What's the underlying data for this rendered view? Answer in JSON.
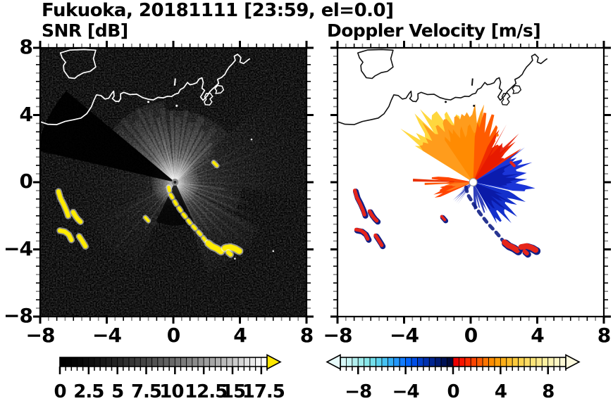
{
  "title": "Fukuoka, 20181111 [23:59, el=0.0]",
  "header": {
    "site": "Fukuoka",
    "date": "20181111",
    "time": "23:59",
    "elevation": "0.0"
  },
  "panels": [
    {
      "subtitle": "SNR [dB]"
    },
    {
      "subtitle": "Doppler Velocity [m/s]"
    }
  ],
  "axes": {
    "x_tick_labels": [
      "−8",
      "−4",
      "0",
      "4",
      "8"
    ],
    "x_tick_values": [
      -8,
      -4,
      0,
      4,
      8
    ],
    "y_tick_labels": [
      "8",
      "4",
      "0",
      "−4",
      "−8"
    ],
    "y_tick_values": [
      8,
      4,
      0,
      -4,
      -8
    ],
    "range": [
      -8,
      8
    ],
    "minor_step": 0.5
  },
  "colorbars": [
    {
      "id": "snr",
      "min": 0,
      "max": 18,
      "segment_step": 0.5,
      "minor_step": 0.5,
      "tick_labels": [
        "0",
        "2.5",
        "5",
        "7.5",
        "10",
        "12.5",
        "15",
        "17.5"
      ],
      "tick_values": [
        0,
        2.5,
        5,
        7.5,
        10,
        12.5,
        15,
        17.5
      ],
      "label_dx": [
        0,
        0,
        0,
        0,
        -5,
        3,
        1,
        3
      ],
      "over_arrow_color": "#ffe800",
      "segment_colors": [
        "#000000",
        "#020202",
        "#040404",
        "#070707",
        "#0b0b0b",
        "#0f0f0f",
        "#141414",
        "#191919",
        "#1e1e1e",
        "#232323",
        "#292929",
        "#303030",
        "#363636",
        "#3d3d3d",
        "#444444",
        "#4b4b4b",
        "#525252",
        "#5a5a5a",
        "#616161",
        "#696969",
        "#717171",
        "#7a7a7a",
        "#828282",
        "#8b8b8b",
        "#949494",
        "#9d9d9d",
        "#a6a6a6",
        "#afafaf",
        "#b9b9b9",
        "#c2c2c2",
        "#cccccc",
        "#d6d6d6",
        "#e0e0e0",
        "#eaeaea",
        "#f5f5f5",
        "#ffffff"
      ]
    },
    {
      "id": "doppler",
      "min": -9.5,
      "max": 9.5,
      "segment_step": 0.5,
      "minor_step": 0.5,
      "tick_labels": [
        "−8",
        "−4",
        "0",
        "4",
        "8"
      ],
      "tick_values": [
        -8,
        -4,
        0,
        4,
        8
      ],
      "label_dx": [
        0,
        0,
        0,
        0,
        0
      ],
      "under_arrow_color": "#e8fcfc",
      "over_arrow_color": "#fdfade",
      "segment_colors": [
        "#d7f8f8",
        "#c6f4f4",
        "#b2f0f0",
        "#9eecec",
        "#88e6e9",
        "#72deea",
        "#5cd2ee",
        "#46c2f2",
        "#32aef6",
        "#2296fa",
        "#127cfe",
        "#0264fa",
        "#004ee6",
        "#003eca",
        "#0030ae",
        "#002490",
        "#001a72",
        "#001256",
        "#000a3a",
        "#ec0000",
        "#f81400",
        "#fc2c00",
        "#fc4400",
        "#fc5c00",
        "#fc7400",
        "#fc8c00",
        "#fc9e08",
        "#fcae18",
        "#fcbc28",
        "#fcca3c",
        "#fcd450",
        "#fcdc64",
        "#fce478",
        "#fcea8c",
        "#fcf0a0",
        "#fcf4b4",
        "#fcf6c4",
        "#fcf8d4"
      ]
    }
  ],
  "chart_data": {
    "type": "heatmap",
    "panels": [
      {
        "id": "snr",
        "title": "SNR [dB]",
        "xlim": [
          -8,
          8
        ],
        "ylim": [
          -8,
          8
        ],
        "background": "#000000",
        "radar_center": [
          0.1,
          0.0
        ],
        "colorbar": "snr"
      },
      {
        "id": "doppler",
        "title": "Doppler Velocity [m/s]",
        "xlim": [
          -8,
          8
        ],
        "ylim": [
          -8,
          8
        ],
        "background": "#ffffff",
        "radar_center": [
          0.15,
          0.0
        ],
        "colorbar": "doppler"
      }
    ],
    "coastline": {
      "island": [
        [
          -6.78,
          7.7
        ],
        [
          -6.2,
          7.87
        ],
        [
          -5.34,
          7.9
        ],
        [
          -4.66,
          7.86
        ],
        [
          -4.8,
          7.36
        ],
        [
          -4.66,
          6.86
        ],
        [
          -5.0,
          6.6
        ],
        [
          -5.38,
          6.52
        ],
        [
          -5.76,
          6.32
        ],
        [
          -5.92,
          6.18
        ],
        [
          -6.27,
          6.22
        ],
        [
          -6.57,
          6.64
        ],
        [
          -6.6,
          6.95
        ],
        [
          -6.47,
          7.14
        ],
        [
          -6.68,
          7.4
        ]
      ],
      "main": [
        [
          -8.05,
          3.62
        ],
        [
          -7.55,
          3.45
        ],
        [
          -7.0,
          3.43
        ],
        [
          -6.5,
          3.62
        ],
        [
          -6.0,
          3.72
        ],
        [
          -5.55,
          3.82
        ],
        [
          -5.2,
          4.08
        ],
        [
          -4.92,
          4.5
        ],
        [
          -4.77,
          4.88
        ],
        [
          -4.62,
          5.2
        ],
        [
          -4.35,
          5.16
        ],
        [
          -4.1,
          4.95
        ],
        [
          -3.88,
          5.0
        ],
        [
          -3.7,
          5.28
        ],
        [
          -3.58,
          5.42
        ],
        [
          -3.56,
          5.12
        ],
        [
          -3.66,
          4.98
        ],
        [
          -3.48,
          4.82
        ],
        [
          -3.28,
          4.8
        ],
        [
          -3.16,
          4.98
        ],
        [
          -3.17,
          5.26
        ],
        [
          -2.98,
          5.35
        ],
        [
          -2.6,
          5.22
        ],
        [
          -2.2,
          5.24
        ],
        [
          -1.85,
          5.04
        ],
        [
          -1.5,
          4.94
        ],
        [
          -1.2,
          4.9
        ],
        [
          -0.92,
          5.05
        ],
        [
          -0.6,
          5.02
        ],
        [
          -0.35,
          5.12
        ],
        [
          -0.1,
          5.1
        ],
        [
          0.1,
          5.24
        ],
        [
          0.3,
          5.3
        ],
        [
          0.42,
          5.52
        ],
        [
          0.62,
          5.62
        ],
        [
          0.85,
          5.94
        ],
        [
          1.0,
          5.8
        ],
        [
          1.18,
          5.84
        ],
        [
          1.4,
          5.92
        ],
        [
          1.55,
          6.14
        ],
        [
          1.72,
          6.22
        ],
        [
          1.8,
          5.94
        ],
        [
          1.72,
          5.6
        ],
        [
          1.88,
          5.46
        ],
        [
          1.64,
          5.08
        ],
        [
          1.78,
          4.88
        ],
        [
          2.02,
          5.12
        ],
        [
          2.22,
          5.42
        ],
        [
          2.52,
          5.7
        ],
        [
          2.72,
          5.88
        ],
        [
          2.66,
          6.12
        ],
        [
          2.9,
          6.24
        ],
        [
          3.1,
          6.42
        ],
        [
          3.2,
          6.62
        ],
        [
          3.36,
          6.86
        ],
        [
          3.56,
          7.06
        ],
        [
          3.72,
          7.26
        ],
        [
          3.66,
          7.5
        ],
        [
          3.86,
          7.62
        ],
        [
          4.06,
          7.42
        ],
        [
          4.0,
          7.16
        ],
        [
          4.22,
          7.06
        ],
        [
          4.46,
          7.26
        ],
        [
          4.6,
          7.36
        ]
      ],
      "pierA": [
        [
          1.92,
          4.62
        ],
        [
          2.18,
          4.6
        ],
        [
          2.32,
          4.78
        ],
        [
          2.2,
          4.96
        ],
        [
          2.36,
          5.1
        ],
        [
          2.22,
          5.3
        ],
        [
          1.98,
          5.28
        ],
        [
          1.88,
          5.08
        ],
        [
          1.98,
          4.94
        ],
        [
          1.86,
          4.78
        ]
      ],
      "pierB": [
        [
          2.55,
          5.28
        ],
        [
          2.85,
          5.32
        ],
        [
          3.02,
          5.5
        ],
        [
          2.92,
          5.72
        ],
        [
          2.66,
          5.76
        ],
        [
          2.5,
          5.58
        ],
        [
          2.6,
          5.44
        ]
      ],
      "islet": [
        [
          0.08,
          5.75
        ],
        [
          0.12,
          6.18
        ]
      ],
      "dots": [
        [
          -1.5,
          4.78
        ],
        [
          0.2,
          4.55
        ]
      ]
    },
    "snr_features": {
      "beam_wedges": [
        [
          -50,
          -6,
          4.9,
          0.9
        ],
        [
          -6,
          48,
          4.3,
          0.75
        ],
        [
          48,
          96,
          8.2,
          0.42
        ],
        [
          96,
          118,
          4.0,
          0.5
        ],
        [
          118,
          162,
          5.8,
          0.55
        ],
        [
          162,
          205,
          2.6,
          0.3
        ],
        [
          205,
          248,
          5.5,
          0.25
        ],
        [
          248,
          284,
          7.0,
          0.14
        ]
      ],
      "dark_sectors": [
        [
          -77,
          -50,
          8.5,
          0.92
        ],
        [
          155,
          207,
          2.6,
          0.8
        ]
      ],
      "rays": [
        [
          -47,
          4.6,
          10,
          0.5
        ],
        [
          -40,
          4.9,
          7,
          0.75
        ],
        [
          -33,
          4.3,
          12,
          0.7
        ],
        [
          -27,
          5.0,
          6,
          0.85
        ],
        [
          -21,
          4.6,
          9,
          0.65
        ],
        [
          -15,
          4.0,
          5,
          0.9
        ],
        [
          -9,
          4.5,
          11,
          0.6
        ],
        [
          -3,
          4.2,
          6,
          0.85
        ],
        [
          3,
          3.9,
          9,
          0.7
        ],
        [
          9,
          4.4,
          5,
          0.85
        ],
        [
          15,
          3.7,
          8,
          0.65
        ],
        [
          22,
          4.2,
          10,
          0.75
        ],
        [
          29,
          3.5,
          6,
          0.8
        ],
        [
          36,
          4.0,
          9,
          0.55
        ],
        [
          43,
          3.2,
          5,
          0.75
        ],
        [
          50,
          2.9,
          7,
          0.45
        ],
        [
          57,
          2.5,
          4,
          0.45
        ],
        [
          63,
          7.9,
          3,
          0.4
        ],
        [
          70,
          7.9,
          5,
          0.45
        ],
        [
          77,
          7.9,
          3,
          0.4
        ],
        [
          84,
          7.9,
          4,
          0.35
        ],
        [
          91,
          5.5,
          3,
          0.4
        ],
        [
          98,
          3.0,
          4,
          0.45
        ],
        [
          106,
          4.6,
          5,
          0.45
        ],
        [
          114,
          5.0,
          4,
          0.5
        ],
        [
          122,
          5.5,
          6,
          0.45
        ],
        [
          130,
          5.8,
          4,
          0.5
        ],
        [
          137,
          4.5,
          5,
          0.45
        ],
        [
          145,
          3.6,
          4,
          0.4
        ],
        [
          153,
          2.8,
          3,
          0.35
        ],
        [
          168,
          2.0,
          3,
          0.25
        ],
        [
          205,
          2.8,
          4,
          0.3
        ],
        [
          213,
          3.3,
          3,
          0.35
        ],
        [
          222,
          5.6,
          4,
          0.35
        ],
        [
          231,
          6.0,
          3,
          0.3
        ],
        [
          240,
          4.2,
          4,
          0.25
        ],
        [
          250,
          2.5,
          3,
          0.2
        ],
        [
          262,
          7.8,
          2.5,
          0.22
        ],
        [
          271,
          7.8,
          2.5,
          0.25
        ],
        [
          315,
          1.8,
          3,
          0.25
        ],
        [
          330,
          2.2,
          3,
          0.25
        ],
        [
          344,
          2.6,
          3,
          0.3
        ],
        [
          352,
          3.0,
          3,
          0.28
        ]
      ],
      "specks": [
        [
          4.7,
          2.55
        ],
        [
          6.0,
          -4.1
        ],
        [
          3.7,
          -4.55
        ]
      ],
      "center_color": "#888888",
      "wake_color": "#ffec00"
    },
    "doppler_features": {
      "wedges": [
        {
          "az": [
            -58,
            -10
          ],
          "r": 5.0,
          "jag": 0.28,
          "c": "#ffd73e"
        },
        {
          "az": [
            -58,
            8
          ],
          "r": 4.35,
          "jag": 0.22,
          "c": "#ff9c1c"
        },
        {
          "az": [
            -34,
            10
          ],
          "r": 3.7,
          "jag": 0.3,
          "c": "#ff8a00",
          "o": 0.9
        },
        {
          "az": [
            2,
            30
          ],
          "r": 3.9,
          "jag": 0.3,
          "c": "#ff5c00"
        },
        {
          "az": [
            22,
            60
          ],
          "r": 3.25,
          "jag": 0.35,
          "c": "#f12b00"
        },
        {
          "az": [
            30,
            56
          ],
          "r": 3.7,
          "jag": 0.55,
          "c": "#e51800",
          "o": 0.9
        },
        {
          "az": [
            56,
            104
          ],
          "r": 3.45,
          "jag": 0.3,
          "c": "#1b35d8"
        },
        {
          "az": [
            62,
            100
          ],
          "r": 2.6,
          "jag": 0.45,
          "c": "#0b1cae"
        },
        {
          "az": [
            104,
            152
          ],
          "r": 3.1,
          "jag": 0.35,
          "c": "#1430cc"
        },
        {
          "az": [
            112,
            150
          ],
          "r": 2.35,
          "jag": 0.5,
          "c": "#0a1aa8"
        },
        {
          "az": [
            152,
            180
          ],
          "r": 1.8,
          "jag": 0.6,
          "c": "#0c1eb0",
          "o": 0.85
        },
        {
          "az": [
            246,
            282
          ],
          "r": 2.3,
          "jag": 0.4,
          "c": "#ff4400"
        },
        {
          "az": [
            250,
            276
          ],
          "r": 1.6,
          "jag": 0.4,
          "c": "#ff7c1e"
        },
        {
          "az": [
            215,
            242
          ],
          "r": 1.5,
          "jag": 0.7,
          "c": "#0c1eb0",
          "o": 0.7
        }
      ],
      "rays": [
        {
          "az": 272,
          "len": 3.6,
          "w": 4,
          "c": "#e83000"
        },
        {
          "az": 268,
          "len": 2.9,
          "w": 3,
          "c": "#ff5500"
        }
      ],
      "dots": [
        {
          "x": 1.6,
          "y": 2.8,
          "c": "#ff7000"
        }
      ],
      "wake_red": "#e6251a",
      "wake_navy": "#111f86",
      "center_color": "#ffffff"
    },
    "wakes": {
      "arcs": [
        [
          [
            -6.9,
            -0.55
          ],
          [
            -6.78,
            -0.95
          ],
          [
            -6.6,
            -1.3
          ],
          [
            -6.42,
            -1.7
          ],
          [
            -6.32,
            -2.0
          ]
        ],
        [
          [
            -6.02,
            -1.78
          ],
          [
            -5.88,
            -2.02
          ],
          [
            -5.74,
            -2.2
          ],
          [
            -5.58,
            -2.36
          ]
        ],
        [
          [
            -6.82,
            -2.88
          ],
          [
            -6.52,
            -2.94
          ],
          [
            -6.28,
            -3.12
          ],
          [
            -6.12,
            -3.44
          ]
        ],
        [
          [
            -5.66,
            -3.22
          ],
          [
            -5.5,
            -3.46
          ],
          [
            -5.36,
            -3.68
          ],
          [
            -5.28,
            -3.82
          ]
        ]
      ],
      "chain": [
        [
          -0.28,
          -0.3
        ],
        [
          -0.18,
          -0.72
        ],
        [
          0.02,
          -1.05
        ],
        [
          0.18,
          -1.32
        ],
        [
          0.38,
          -1.6
        ],
        [
          0.58,
          -1.88
        ],
        [
          0.8,
          -2.16
        ],
        [
          1.02,
          -2.44
        ],
        [
          1.28,
          -2.72
        ],
        [
          1.52,
          -2.98
        ],
        [
          1.76,
          -3.26
        ],
        [
          1.96,
          -3.52
        ]
      ],
      "end_clusters": [
        [
          [
            2.1,
            -3.64
          ],
          [
            2.32,
            -3.82
          ],
          [
            2.6,
            -3.94
          ],
          [
            2.86,
            -4.12
          ]
        ],
        [
          [
            3.1,
            -3.92
          ],
          [
            3.42,
            -3.86
          ],
          [
            3.72,
            -3.96
          ],
          [
            3.96,
            -4.1
          ]
        ],
        [
          [
            3.3,
            -4.18
          ],
          [
            3.44,
            -4.3
          ]
        ]
      ],
      "dash": [
        [
          -1.68,
          -2.1
        ],
        [
          -1.5,
          -2.3
        ]
      ],
      "tick": [
        [
          2.42,
          1.18
        ],
        [
          2.62,
          0.98
        ]
      ]
    }
  }
}
